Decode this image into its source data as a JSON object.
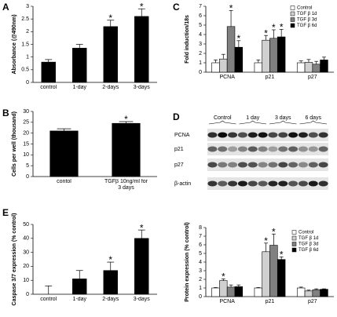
{
  "chart_data": [
    {
      "type": "bar",
      "panel": "A",
      "y_label": "Absorbance (@490nm)",
      "categories": [
        "control",
        "1-day",
        "2-days",
        "3-days"
      ],
      "values": [
        0.8,
        1.35,
        2.2,
        2.6
      ],
      "errors": [
        0.1,
        0.15,
        0.25,
        0.3
      ],
      "significance": [
        null,
        null,
        "*",
        "*"
      ],
      "color": "#000000",
      "ylim": [
        0,
        3
      ],
      "yticks": [
        0,
        0.5,
        1,
        1.5,
        2,
        2.5,
        3
      ]
    },
    {
      "type": "bar",
      "panel": "B",
      "y_label": "Cells per well (thousand)",
      "categories": [
        "contol",
        "TGFβ 10ng/ml for 3 days"
      ],
      "values": [
        21,
        24.5
      ],
      "errors": [
        1,
        0.8
      ],
      "significance": [
        null,
        "*"
      ],
      "color": "#000000",
      "ylim": [
        0,
        30
      ],
      "yticks": [
        0,
        5,
        10,
        15,
        20,
        25,
        30
      ]
    },
    {
      "type": "bar",
      "panel": "C",
      "y_label": "Fold induction/18s",
      "categories": [
        "PCNA",
        "p21",
        "p27"
      ],
      "series": [
        {
          "name": "Control",
          "color": "#ffffff",
          "values": [
            1,
            1,
            1
          ],
          "errors": [
            0.3,
            0.3,
            0.2
          ],
          "significance": [
            null,
            null,
            null
          ]
        },
        {
          "name": "TGF β 1d",
          "color": "#d0d0d0",
          "values": [
            1.4,
            3.4,
            1.05
          ],
          "errors": [
            0.5,
            0.5,
            0.3
          ],
          "significance": [
            null,
            "*",
            null
          ]
        },
        {
          "name": "TGF β 3d",
          "color": "#808080",
          "values": [
            4.85,
            3.6,
            0.85
          ],
          "errors": [
            1.7,
            0.9,
            0.3
          ],
          "significance": [
            "*",
            "*",
            null
          ]
        },
        {
          "name": "TGF β 6d",
          "color": "#000000",
          "values": [
            2.65,
            3.75,
            1.3
          ],
          "errors": [
            0.7,
            0.8,
            0.3
          ],
          "significance": [
            "*",
            "*",
            null
          ]
        }
      ],
      "ylim": [
        0,
        7
      ],
      "yticks": [
        0,
        1,
        2,
        3,
        4,
        5,
        6,
        7
      ],
      "legend": "upper right"
    },
    {
      "type": "bar",
      "panel": "E",
      "y_label": "Caspase 3/7 expression (% control)",
      "categories": [
        "control",
        "1-day",
        "2-days",
        "3-days"
      ],
      "values": [
        0,
        11,
        17,
        40
      ],
      "errors": [
        6,
        6,
        6,
        6
      ],
      "significance": [
        null,
        null,
        "*",
        "*"
      ],
      "color": "#000000",
      "ylim": [
        0,
        50
      ],
      "yticks": [
        0,
        10,
        20,
        30,
        40,
        50
      ]
    },
    {
      "type": "bar",
      "y_label": "Protein expression (% control)",
      "categories": [
        "PCNA",
        "p21",
        "p27"
      ],
      "series": [
        {
          "name": "Control",
          "color": "#ffffff",
          "values": [
            1,
            1,
            1
          ],
          "errors": [
            0.05,
            0.05,
            0.1
          ],
          "significance": [
            null,
            null,
            null
          ]
        },
        {
          "name": "TGF β 1d",
          "color": "#d0d0d0",
          "values": [
            1.85,
            5.2,
            0.65
          ],
          "errors": [
            0.2,
            1.0,
            0.1
          ],
          "significance": [
            "*",
            "*",
            null
          ]
        },
        {
          "name": "TGF β 3d",
          "color": "#808080",
          "values": [
            1.1,
            5.95,
            0.8
          ],
          "errors": [
            0.25,
            1.3,
            0.1
          ],
          "significance": [
            null,
            "*",
            null
          ]
        },
        {
          "name": "TGF β 6d",
          "color": "#000000",
          "values": [
            1.15,
            4.3,
            0.85
          ],
          "errors": [
            0.2,
            0.3,
            0.05
          ],
          "significance": [
            null,
            "*",
            null
          ]
        }
      ],
      "ylim": [
        0,
        8
      ],
      "yticks": [
        0,
        1,
        2,
        3,
        4,
        5,
        6,
        7,
        8
      ],
      "legend": "upper right"
    }
  ],
  "blot": {
    "panel": "D",
    "groups": [
      "Control",
      "1 day",
      "3 days",
      "6 days"
    ],
    "rows": [
      "PCNA",
      "p21",
      "p27",
      "β-actin"
    ]
  }
}
